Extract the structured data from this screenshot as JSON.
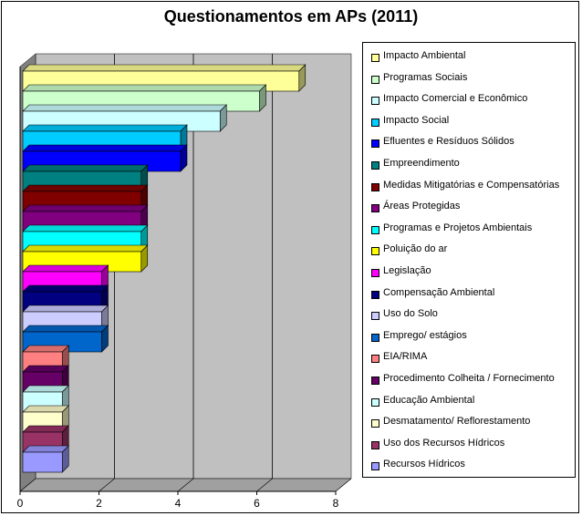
{
  "chart_data": {
    "type": "bar",
    "orientation": "horizontal",
    "title": "Questionamentos em APs (2011)",
    "xlabel": "",
    "ylabel": "",
    "xlim": [
      0,
      8
    ],
    "x_ticks": [
      "0",
      "2",
      "4",
      "6",
      "8"
    ],
    "grid": true,
    "legend_position": "right",
    "categories": [
      "Impacto Ambiental",
      "Programas Sociais",
      "Impacto Comercial e Econômico",
      "Impacto Social",
      "Efluentes e Resíduos Sólidos",
      "Empreendimento",
      "Medidas Mitigatórias e Compensatórias",
      "Áreas Protegidas",
      "Programas e Projetos Ambientais",
      "Poluição do ar",
      "Legislação",
      "Compensação Ambiental",
      "Uso do Solo",
      "Emprego/ estágios",
      "EIA/RIMA",
      "Procedimento Colheita / Fornecimento",
      "Educação Ambiental",
      "Desmatamento/ Reflorestamento",
      "Uso dos Recursos Hídricos",
      "Recursos Hídricos"
    ],
    "values": [
      7,
      6,
      5,
      4,
      4,
      3,
      3,
      3,
      3,
      3,
      2,
      2,
      2,
      2,
      1,
      1,
      1,
      1,
      1,
      1
    ],
    "colors": [
      "#FFFF99",
      "#CCFFCC",
      "#CCFFFF",
      "#00CCFF",
      "#0000FF",
      "#008080",
      "#800000",
      "#800080",
      "#00FFFF",
      "#FFFF00",
      "#FF00FF",
      "#000080",
      "#CCCCFF",
      "#0066CC",
      "#FF8080",
      "#660066",
      "#CCFFFF",
      "#FFFFCC",
      "#993366",
      "#9999FF"
    ],
    "plot_background": "#C0C0C0"
  }
}
